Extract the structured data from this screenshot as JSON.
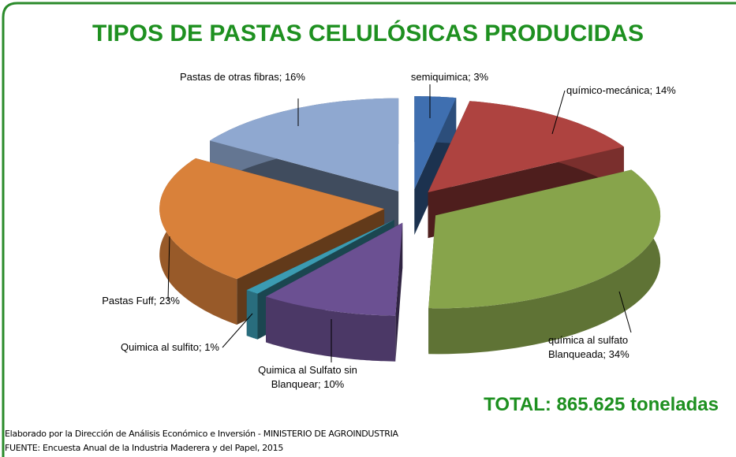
{
  "chart_data": {
    "type": "pie",
    "title": "TIPOS DE PASTAS CELULÓSICAS PRODUCIDAS",
    "categories": [
      "semiquimica; 3%",
      "químico-mecánica;  14%",
      "química al sulfato Blanqueada; 34%",
      "Quimica al Sulfato sin Blanquear; 10%",
      "Quimica al  sulfito; 1%",
      "Pastas Fuff; 23%",
      "Pastas de otras fibras; 16%"
    ],
    "values": [
      3,
      14,
      34,
      10,
      1,
      23,
      16
    ],
    "colors": [
      "#3f6fb0",
      "#ae4340",
      "#87a44b",
      "#6b5092",
      "#3b9bb2",
      "#d9813a",
      "#8fa8d0"
    ],
    "total": "TOTAL:  865.625 toneladas",
    "notes": [
      "Elaborado por la Dirección de Análisis Económico e Inversión - MINISTERIO DE AGROINDUSTRIA",
      "FUENTE: Encuesta Anual de la Industria Maderera y del Papel, 2015"
    ]
  }
}
